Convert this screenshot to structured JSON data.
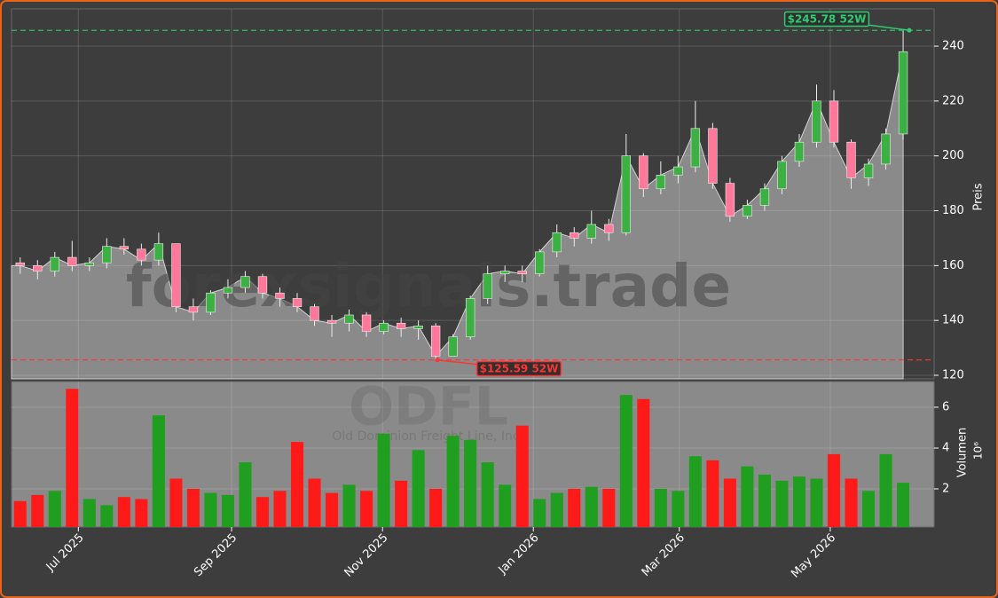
{
  "chart_data": {
    "type": "candlestick",
    "watermark": "forexsignals.trade",
    "symbol": "ODFL",
    "company": "Old Dominion Freight Line, Inc",
    "categories": [
      null,
      null,
      null,
      null,
      null,
      null,
      null,
      null,
      null,
      null,
      null,
      null,
      null,
      null,
      null,
      null,
      null,
      null,
      null,
      null,
      null,
      null,
      null,
      null,
      null,
      null,
      null,
      null,
      null,
      null,
      null,
      null,
      null,
      null,
      null,
      null,
      null,
      null,
      null,
      null,
      null,
      null,
      null,
      null,
      null,
      null,
      null,
      null,
      null,
      null,
      null,
      null
    ],
    "open": [
      161,
      160,
      158,
      163,
      160,
      161,
      167,
      166,
      162,
      168,
      145,
      143,
      150,
      152,
      156,
      150,
      148,
      145,
      140,
      139,
      142,
      136,
      139,
      137,
      138,
      127,
      134,
      148,
      157,
      158,
      157,
      165,
      172,
      170,
      175,
      172,
      200,
      188,
      193,
      196,
      210,
      190,
      178,
      182,
      188,
      198,
      205,
      220,
      205,
      192,
      197,
      208
    ],
    "high": [
      163,
      162,
      165,
      169,
      163,
      170,
      170,
      168,
      172,
      168,
      148,
      151,
      155,
      158,
      157,
      152,
      150,
      146,
      142,
      144,
      143,
      140,
      141,
      140,
      139,
      135,
      149,
      160,
      160,
      160,
      166,
      175,
      174,
      180,
      177,
      208,
      201,
      198,
      200,
      220,
      212,
      192,
      184,
      190,
      200,
      208,
      226,
      224,
      206,
      199,
      210,
      245.78
    ],
    "low": [
      157,
      155,
      156,
      158,
      158,
      159,
      164,
      160,
      160,
      143,
      140,
      142,
      148,
      150,
      148,
      145,
      143,
      138,
      134,
      136,
      134,
      135,
      134,
      133,
      125.59,
      127,
      133,
      146,
      154,
      154,
      156,
      163,
      167,
      168,
      169,
      171,
      185,
      186,
      190,
      194,
      188,
      176,
      177,
      180,
      186,
      196,
      203,
      203,
      188,
      189,
      195,
      206
    ],
    "close": [
      160,
      158,
      163,
      160,
      161,
      167,
      166,
      162,
      168,
      145,
      143,
      150,
      152,
      156,
      150,
      148,
      145,
      140,
      139,
      142,
      136,
      139,
      137,
      138,
      127,
      134,
      148,
      157,
      158,
      157,
      165,
      172,
      170,
      175,
      172,
      200,
      188,
      193,
      196,
      210,
      190,
      178,
      182,
      188,
      198,
      205,
      220,
      205,
      192,
      197,
      208,
      238
    ],
    "volume": [
      1.4,
      1.7,
      1.9,
      6.9,
      1.5,
      1.2,
      1.6,
      1.5,
      5.6,
      2.5,
      2.0,
      1.8,
      1.7,
      3.3,
      1.6,
      1.9,
      4.3,
      2.5,
      1.8,
      2.2,
      1.9,
      4.7,
      2.4,
      3.9,
      2.0,
      4.6,
      4.4,
      3.3,
      2.2,
      5.1,
      1.5,
      1.8,
      2.0,
      2.1,
      2.0,
      6.6,
      6.4,
      2.0,
      1.9,
      3.6,
      3.4,
      2.5,
      3.1,
      2.7,
      2.4,
      2.6,
      2.5,
      3.7,
      2.5,
      1.9,
      3.7,
      2.3
    ],
    "up_color": "#1f9e1f",
    "down_color": "#ff1a1a",
    "candle_up_color": "#3cb043",
    "candle_down_color": "#ff7799",
    "xlim": [
      -0.5,
      52.79
    ],
    "xticks": [
      {
        "value": 3.36,
        "label": "Jul 2025"
      },
      {
        "value": 12.21,
        "label": "Sep 2025"
      },
      {
        "value": 20.93,
        "label": "Nov 2025"
      },
      {
        "value": 29.64,
        "label": "Jan 2026"
      },
      {
        "value": 38.07,
        "label": "Mar 2026"
      },
      {
        "value": 46.79,
        "label": "May 2026"
      }
    ],
    "ylabel": "Preis",
    "ylim": [
      118.7,
      253.6
    ],
    "yticks": [
      120,
      140,
      160,
      180,
      200,
      220,
      240
    ],
    "y2label": "Volumen",
    "y2_multiplier": "10⁶",
    "y2lim": [
      0.13,
      7.26
    ],
    "y2ticks": [
      2,
      4,
      6
    ],
    "grid": true,
    "high_52w": {
      "value": 245.78,
      "label": "$245.78 52W",
      "color": "#2ecc71"
    },
    "low_52w": {
      "value": 125.59,
      "label": "$125.59 52W",
      "color": "#ff3333"
    }
  }
}
